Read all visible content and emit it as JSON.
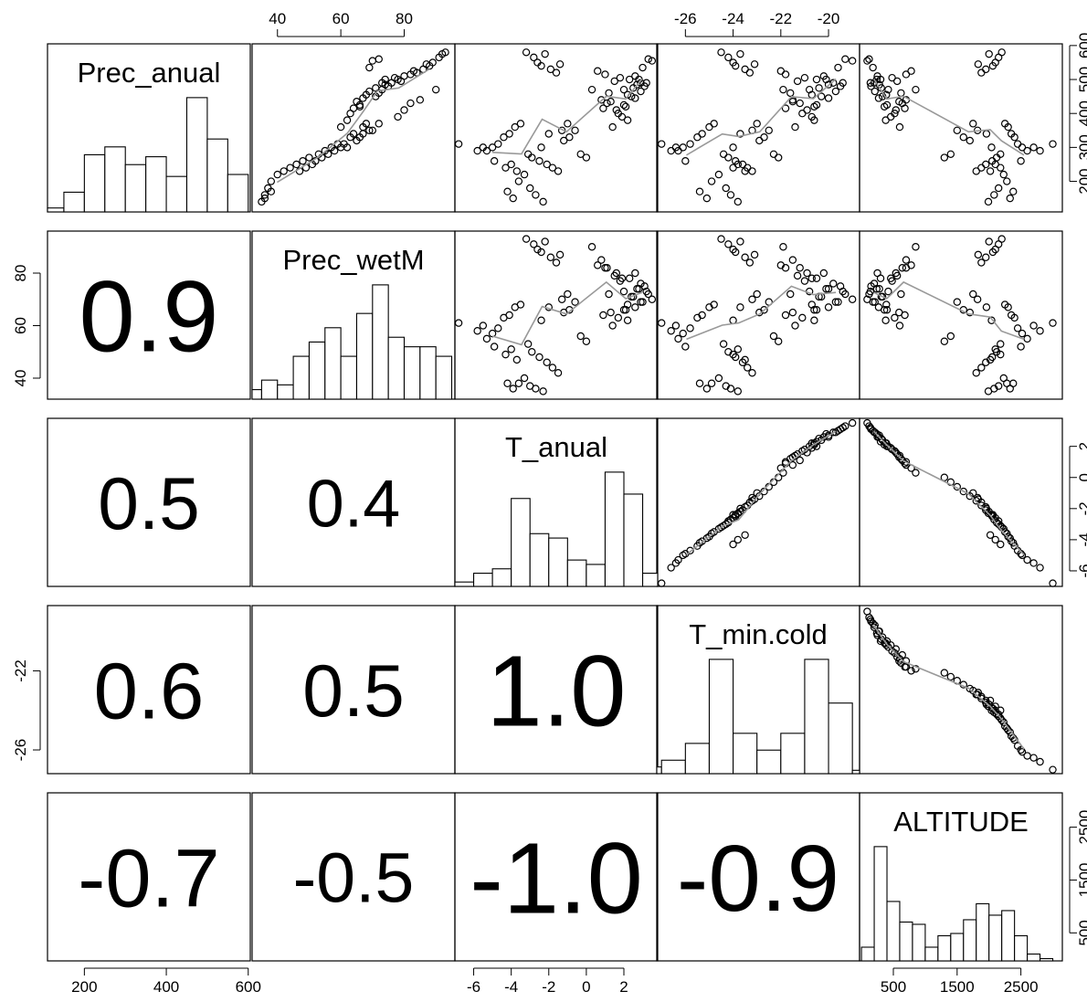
{
  "chart_data": {
    "type": "scatter-matrix",
    "variables": [
      "Prec_anual",
      "Prec_wetM",
      "T_anual",
      "T_min.cold",
      "ALTITUDE"
    ],
    "ranges": {
      "Prec_anual": [
        110,
        605
      ],
      "Prec_wetM": [
        32,
        96
      ],
      "T_anual": [
        -7,
        3.8
      ],
      "T_min.cold": [
        -27.2,
        -18.7
      ],
      "ALTITUDE": [
        -30,
        3150
      ]
    },
    "axis_ticks": {
      "Prec_anual": {
        "side": "right",
        "values": [
          200,
          300,
          400,
          500,
          600
        ]
      },
      "Prec_wetM": {
        "side": "left",
        "values": [
          40,
          60,
          80
        ]
      },
      "T_anual": {
        "side": "right",
        "values": [
          -6,
          -4,
          -2,
          0,
          2
        ]
      },
      "T_min.cold": {
        "side": "left",
        "values": [
          -26,
          -22
        ]
      },
      "ALTITUDE": {
        "side": "right",
        "values": [
          500,
          1500,
          2500
        ]
      }
    },
    "top_axis_ticks": {
      "Prec_wetM": [
        40,
        60,
        80
      ],
      "T_min.cold": [
        -26,
        -24,
        -22,
        -20
      ]
    },
    "bottom_axis_ticks": {
      "Prec_anual": [
        200,
        400,
        600
      ],
      "T_anual": [
        -6,
        -4,
        -2,
        0,
        2
      ],
      "ALTITUDE": [
        500,
        1500,
        2500
      ]
    },
    "correlations": [
      {
        "row": 1,
        "col": 0,
        "label": "0.9",
        "size": 1.0
      },
      {
        "row": 2,
        "col": 0,
        "label": "0.5",
        "size": 0.55
      },
      {
        "row": 2,
        "col": 1,
        "label": "0.4",
        "size": 0.45
      },
      {
        "row": 3,
        "col": 0,
        "label": "0.6",
        "size": 0.65
      },
      {
        "row": 3,
        "col": 1,
        "label": "0.5",
        "size": 0.55
      },
      {
        "row": 3,
        "col": 2,
        "label": "1.0",
        "size": 1.0
      },
      {
        "row": 4,
        "col": 0,
        "label": "-0.7",
        "size": 0.7
      },
      {
        "row": 4,
        "col": 1,
        "label": "-0.5",
        "size": 0.5
      },
      {
        "row": 4,
        "col": 2,
        "label": "-1.0",
        "size": 1.0
      },
      {
        "row": 4,
        "col": 3,
        "label": "-0.9",
        "size": 0.9
      }
    ],
    "histograms": {
      "Prec_anual": {
        "breaks": [
          100,
          150,
          200,
          250,
          300,
          350,
          400,
          450,
          500,
          550,
          600
        ],
        "counts": [
          2,
          10,
          29,
          33,
          24,
          28,
          18,
          58,
          37,
          19
        ]
      },
      "Prec_wetM": {
        "breaks": [
          30,
          35,
          40,
          45,
          50,
          55,
          60,
          65,
          70,
          75,
          80,
          85,
          90,
          95
        ],
        "counts": [
          2,
          4,
          3,
          9,
          12,
          15,
          9,
          18,
          24,
          13,
          11,
          11,
          9
        ]
      },
      "T_anual": {
        "breaks": [
          -7,
          -6,
          -5,
          -4,
          -3,
          -2,
          -1,
          0,
          1,
          2,
          3,
          4
        ],
        "counts": [
          1,
          3,
          4,
          20,
          12,
          11,
          6,
          5,
          26,
          21,
          3
        ]
      },
      "T_min.cold": {
        "breaks": [
          -28,
          -27,
          -26,
          -25,
          -24,
          -23,
          -22,
          -21,
          -20,
          -19,
          -18
        ],
        "counts": [
          2,
          4,
          9,
          34,
          12,
          7,
          12,
          34,
          21,
          1
        ]
      },
      "ALTITUDE": {
        "breaks": [
          0,
          200,
          400,
          600,
          800,
          1000,
          1200,
          1400,
          1600,
          1800,
          2000,
          2200,
          2400,
          2600,
          2800,
          3000,
          3200
        ],
        "counts": [
          6,
          50,
          26,
          17,
          16,
          6,
          11,
          12,
          18,
          25,
          20,
          22,
          11,
          3,
          1,
          0
        ]
      }
    },
    "points": [
      {
        "Prec_anual": 580,
        "Prec_wetM": 93,
        "T_anual": -3.2,
        "T_min.cold": -24.5,
        "ALTITUDE": 2200
      },
      {
        "Prec_anual": 565,
        "Prec_wetM": 91,
        "T_anual": -2.8,
        "T_min.cold": -24.2,
        "ALTITUDE": 2150
      },
      {
        "Prec_anual": 550,
        "Prec_wetM": 89,
        "T_anual": -2.6,
        "T_min.cold": -24.0,
        "ALTITUDE": 2100
      },
      {
        "Prec_anual": 540,
        "Prec_wetM": 88,
        "T_anual": -2.4,
        "T_min.cold": -23.9,
        "ALTITUDE": 2060
      },
      {
        "Prec_anual": 575,
        "Prec_wetM": 92,
        "T_anual": -2.2,
        "T_min.cold": -23.7,
        "ALTITUDE": 2000
      },
      {
        "Prec_anual": 530,
        "Prec_wetM": 86,
        "T_anual": -1.9,
        "T_min.cold": -23.5,
        "ALTITUDE": 1950
      },
      {
        "Prec_anual": 520,
        "Prec_wetM": 84,
        "T_anual": -1.6,
        "T_min.cold": -23.3,
        "ALTITUDE": 1880
      },
      {
        "Prec_anual": 545,
        "Prec_wetM": 87,
        "T_anual": -1.4,
        "T_min.cold": -23.1,
        "ALTITUDE": 1830
      },
      {
        "Prec_anual": 500,
        "Prec_wetM": 78,
        "T_anual": 2.3,
        "T_min.cold": -20.5,
        "ALTITUDE": 300
      },
      {
        "Prec_anual": 510,
        "Prec_wetM": 80,
        "T_anual": 2.6,
        "T_min.cold": -20.2,
        "ALTITUDE": 250
      },
      {
        "Prec_anual": 490,
        "Prec_wetM": 76,
        "T_anual": 2.9,
        "T_min.cold": -19.8,
        "ALTITUDE": 200
      },
      {
        "Prec_anual": 480,
        "Prec_wetM": 75,
        "T_anual": 3.1,
        "T_min.cold": -19.5,
        "ALTITUDE": 150
      },
      {
        "Prec_anual": 470,
        "Prec_wetM": 73,
        "T_anual": 2.0,
        "T_min.cold": -20.8,
        "ALTITUDE": 420
      },
      {
        "Prec_anual": 505,
        "Prec_wetM": 77,
        "T_anual": 1.8,
        "T_min.cold": -21.0,
        "ALTITUDE": 480
      },
      {
        "Prec_anual": 495,
        "Prec_wetM": 79,
        "T_anual": 1.5,
        "T_min.cold": -21.3,
        "ALTITUDE": 560
      },
      {
        "Prec_anual": 460,
        "Prec_wetM": 72,
        "T_anual": 1.2,
        "T_min.cold": -21.6,
        "ALTITUDE": 620
      },
      {
        "Prec_anual": 450,
        "Prec_wetM": 71,
        "T_anual": 2.4,
        "T_min.cold": -20.3,
        "ALTITUDE": 330
      },
      {
        "Prec_anual": 485,
        "Prec_wetM": 74,
        "T_anual": 2.7,
        "T_min.cold": -20.0,
        "ALTITUDE": 280
      },
      {
        "Prec_anual": 515,
        "Prec_wetM": 82,
        "T_anual": 1.0,
        "T_min.cold": -21.8,
        "ALTITUDE": 700
      },
      {
        "Prec_anual": 525,
        "Prec_wetM": 83,
        "T_anual": 0.6,
        "T_min.cold": -22.0,
        "ALTITUDE": 780
      },
      {
        "Prec_anual": 420,
        "Prec_wetM": 66,
        "T_anual": 2.1,
        "T_min.cold": -20.6,
        "ALTITUDE": 360
      },
      {
        "Prec_anual": 400,
        "Prec_wetM": 63,
        "T_anual": 1.7,
        "T_min.cold": -21.1,
        "ALTITUDE": 520
      },
      {
        "Prec_anual": 380,
        "Prec_wetM": 62,
        "T_anual": 2.2,
        "T_min.cold": -20.6,
        "ALTITUDE": 380
      },
      {
        "Prec_anual": 360,
        "Prec_wetM": 60,
        "T_anual": 1.4,
        "T_min.cold": -21.4,
        "ALTITUDE": 600
      },
      {
        "Prec_anual": 370,
        "Prec_wetM": 68,
        "T_anual": -3.5,
        "T_min.cold": -24.8,
        "ALTITUDE": 2250
      },
      {
        "Prec_anual": 360,
        "Prec_wetM": 67,
        "T_anual": -3.8,
        "T_min.cold": -25.0,
        "ALTITUDE": 2300
      },
      {
        "Prec_anual": 340,
        "Prec_wetM": 64,
        "T_anual": -4.1,
        "T_min.cold": -25.3,
        "ALTITUDE": 2350
      },
      {
        "Prec_anual": 330,
        "Prec_wetM": 63,
        "T_anual": -4.4,
        "T_min.cold": -25.5,
        "ALTITUDE": 2400
      },
      {
        "Prec_anual": 310,
        "Prec_wetM": 59,
        "T_anual": -4.7,
        "T_min.cold": -25.8,
        "ALTITUDE": 2450
      },
      {
        "Prec_anual": 300,
        "Prec_wetM": 57,
        "T_anual": -5.0,
        "T_min.cold": -26.1,
        "ALTITUDE": 2520
      },
      {
        "Prec_anual": 290,
        "Prec_wetM": 55,
        "T_anual": -5.3,
        "T_min.cold": -26.3,
        "ALTITUDE": 2600
      },
      {
        "Prec_anual": 280,
        "Prec_wetM": 53,
        "T_anual": -3.1,
        "T_min.cold": -24.4,
        "ALTITUDE": 2180
      },
      {
        "Prec_anual": 270,
        "Prec_wetM": 50,
        "T_anual": -2.9,
        "T_min.cold": -24.2,
        "ALTITUDE": 2120
      },
      {
        "Prec_anual": 260,
        "Prec_wetM": 48,
        "T_anual": -2.5,
        "T_min.cold": -23.9,
        "ALTITUDE": 2050
      },
      {
        "Prec_anual": 250,
        "Prec_wetM": 46,
        "T_anual": -2.1,
        "T_min.cold": -23.6,
        "ALTITUDE": 1950
      },
      {
        "Prec_anual": 240,
        "Prec_wetM": 44,
        "T_anual": -1.8,
        "T_min.cold": -23.4,
        "ALTITUDE": 1880
      },
      {
        "Prec_anual": 230,
        "Prec_wetM": 42,
        "T_anual": -1.5,
        "T_min.cold": -23.2,
        "ALTITUDE": 1800
      },
      {
        "Prec_anual": 220,
        "Prec_wetM": 40,
        "T_anual": -3.3,
        "T_min.cold": -24.6,
        "ALTITUDE": 2230
      },
      {
        "Prec_anual": 200,
        "Prec_wetM": 38,
        "T_anual": -3.6,
        "T_min.cold": -24.9,
        "ALTITUDE": 2280
      },
      {
        "Prec_anual": 180,
        "Prec_wetM": 37,
        "T_anual": -3.0,
        "T_min.cold": -24.3,
        "ALTITUDE": 2150
      },
      {
        "Prec_anual": 160,
        "Prec_wetM": 36,
        "T_anual": -2.7,
        "T_min.cold": -24.1,
        "ALTITUDE": 2080
      },
      {
        "Prec_anual": 140,
        "Prec_wetM": 35,
        "T_anual": -2.3,
        "T_min.cold": -23.8,
        "ALTITUDE": 1990
      },
      {
        "Prec_anual": 150,
        "Prec_wetM": 36,
        "T_anual": -3.9,
        "T_min.cold": -25.1,
        "ALTITUDE": 2330
      },
      {
        "Prec_anual": 170,
        "Prec_wetM": 38,
        "T_anual": -4.2,
        "T_min.cold": -25.4,
        "ALTITUDE": 2380
      },
      {
        "Prec_anual": 310,
        "Prec_wetM": 61,
        "T_anual": -6.8,
        "T_min.cold": -27.0,
        "ALTITUDE": 3000
      },
      {
        "Prec_anual": 290,
        "Prec_wetM": 58,
        "T_anual": -5.8,
        "T_min.cold": -26.6,
        "ALTITUDE": 2800
      },
      {
        "Prec_anual": 300,
        "Prec_wetM": 60,
        "T_anual": -5.5,
        "T_min.cold": -26.4,
        "ALTITUDE": 2700
      },
      {
        "Prec_anual": 260,
        "Prec_wetM": 52,
        "T_anual": -4.9,
        "T_min.cold": -26.0,
        "ALTITUDE": 2500
      },
      {
        "Prec_anual": 320,
        "Prec_wetM": 65,
        "T_anual": -1.2,
        "T_min.cold": -22.9,
        "ALTITUDE": 1700
      },
      {
        "Prec_anual": 330,
        "Prec_wetM": 66,
        "T_anual": -0.9,
        "T_min.cold": -22.7,
        "ALTITUDE": 1600
      },
      {
        "Prec_anual": 350,
        "Prec_wetM": 69,
        "T_anual": -0.6,
        "T_min.cold": -22.5,
        "ALTITUDE": 1500
      },
      {
        "Prec_anual": 280,
        "Prec_wetM": 56,
        "T_anual": -0.3,
        "T_min.cold": -22.3,
        "ALTITUDE": 1400
      },
      {
        "Prec_anual": 270,
        "Prec_wetM": 54,
        "T_anual": 0.0,
        "T_min.cold": -22.1,
        "ALTITUDE": 1300
      },
      {
        "Prec_anual": 250,
        "Prec_wetM": 51,
        "T_anual": -4.0,
        "T_min.cold": -23.8,
        "ALTITUDE": 2100
      },
      {
        "Prec_anual": 240,
        "Prec_wetM": 49,
        "T_anual": -4.3,
        "T_min.cold": -24.0,
        "ALTITUDE": 2180
      },
      {
        "Prec_anual": 230,
        "Prec_wetM": 47,
        "T_anual": -3.7,
        "T_min.cold": -23.5,
        "ALTITUDE": 2020
      },
      {
        "Prec_anual": 560,
        "Prec_wetM": 72,
        "T_anual": 3.3,
        "T_min.cold": -19.3,
        "ALTITUDE": 120
      },
      {
        "Prec_anual": 555,
        "Prec_wetM": 70,
        "T_anual": 3.5,
        "T_min.cold": -19.0,
        "ALTITUDE": 90
      },
      {
        "Prec_anual": 535,
        "Prec_wetM": 69,
        "T_anual": 3.0,
        "T_min.cold": -19.6,
        "ALTITUDE": 180
      },
      {
        "Prec_anual": 470,
        "Prec_wetM": 90,
        "T_anual": 0.3,
        "T_min.cold": -21.9,
        "ALTITUDE": 850
      },
      {
        "Prec_anual": 440,
        "Prec_wetM": 85,
        "T_anual": 0.8,
        "T_min.cold": -21.5,
        "ALTITUDE": 700
      },
      {
        "Prec_anual": 430,
        "Prec_wetM": 82,
        "T_anual": 1.1,
        "T_min.cold": -21.2,
        "ALTITUDE": 640
      },
      {
        "Prec_anual": 410,
        "Prec_wetM": 80,
        "T_anual": 1.6,
        "T_min.cold": -20.9,
        "ALTITUDE": 540
      },
      {
        "Prec_anual": 390,
        "Prec_wetM": 78,
        "T_anual": 1.9,
        "T_min.cold": -20.7,
        "ALTITUDE": 460
      },
      {
        "Prec_anual": 370,
        "Prec_wetM": 72,
        "T_anual": -1.0,
        "T_min.cold": -23.0,
        "ALTITUDE": 1750
      },
      {
        "Prec_anual": 350,
        "Prec_wetM": 70,
        "T_anual": -1.3,
        "T_min.cold": -23.2,
        "ALTITUDE": 1820
      },
      {
        "Prec_anual": 340,
        "Prec_wetM": 67,
        "T_anual": -2.0,
        "T_min.cold": -23.7,
        "ALTITUDE": 1960
      },
      {
        "Prec_anual": 300,
        "Prec_wetM": 62,
        "T_anual": -2.4,
        "T_min.cold": -24.0,
        "ALTITUDE": 2040
      },
      {
        "Prec_anual": 500,
        "Prec_wetM": 74,
        "T_anual": 2.8,
        "T_min.cold": -20.1,
        "ALTITUDE": 240
      },
      {
        "Prec_anual": 475,
        "Prec_wetM": 71,
        "T_anual": 2.5,
        "T_min.cold": -20.4,
        "ALTITUDE": 310
      },
      {
        "Prec_anual": 455,
        "Prec_wetM": 68,
        "T_anual": 2.2,
        "T_min.cold": -20.7,
        "ALTITUDE": 390
      },
      {
        "Prec_anual": 435,
        "Prec_wetM": 65,
        "T_anual": 1.3,
        "T_min.cold": -21.5,
        "ALTITUDE": 590
      },
      {
        "Prec_anual": 415,
        "Prec_wetM": 64,
        "T_anual": 0.9,
        "T_min.cold": -21.8,
        "ALTITUDE": 680
      },
      {
        "Prec_anual": 490,
        "Prec_wetM": 73,
        "T_anual": 3.2,
        "T_min.cold": -19.4,
        "ALTITUDE": 140
      },
      {
        "Prec_anual": 465,
        "Prec_wetM": 69,
        "T_anual": 2.9,
        "T_min.cold": -19.7,
        "ALTITUDE": 210
      },
      {
        "Prec_anual": 445,
        "Prec_wetM": 67,
        "T_anual": 2.6,
        "T_min.cold": -20.0,
        "ALTITUDE": 270
      },
      {
        "Prec_anual": 425,
        "Prec_wetM": 66,
        "T_anual": 2.0,
        "T_min.cold": -20.5,
        "ALTITUDE": 400
      }
    ]
  }
}
